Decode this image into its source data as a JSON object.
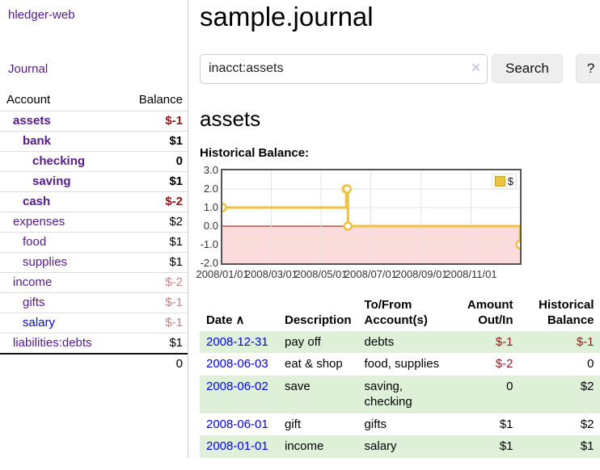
{
  "app": {
    "brand": "hledger-web"
  },
  "sidebar": {
    "journal_link": "Journal",
    "header": {
      "account": "Account",
      "balance": "Balance"
    },
    "accounts": [
      {
        "name": "assets",
        "balance": "$-1"
      },
      {
        "name": "bank",
        "balance": "$1"
      },
      {
        "name": "checking",
        "balance": "0"
      },
      {
        "name": "saving",
        "balance": "$1"
      },
      {
        "name": "cash",
        "balance": "$-2"
      },
      {
        "name": "expenses",
        "balance": "$2"
      },
      {
        "name": "food",
        "balance": "$1"
      },
      {
        "name": "supplies",
        "balance": "$1"
      },
      {
        "name": "income",
        "balance": "$-2"
      },
      {
        "name": "gifts",
        "balance": "$-1"
      },
      {
        "name": "salary",
        "balance": "$-1"
      },
      {
        "name": "liabilities:debts",
        "balance": "$1"
      }
    ],
    "total": "0"
  },
  "main": {
    "title": "sample.journal",
    "search": {
      "value": "inacct:assets",
      "clear_icon": "×",
      "search_button": "Search",
      "help_button": "?"
    },
    "heading": "assets",
    "chart_title": "Historical Balance:"
  },
  "register": {
    "headers": {
      "date": "Date",
      "description": "Description",
      "accounts": "To/From Account(s)",
      "amount": "Amount Out/In",
      "balance": "Historical Balance"
    },
    "sort_icon": "∧",
    "rows": [
      {
        "date": "2008-12-31",
        "description": "pay off",
        "accounts": "debts",
        "amount": "$-1",
        "balance": "$-1"
      },
      {
        "date": "2008-06-03",
        "description": "eat & shop",
        "accounts": "food, supplies",
        "amount": "$-2",
        "balance": "0"
      },
      {
        "date": "2008-06-02",
        "description": "save",
        "accounts": "saving, checking",
        "amount": "0",
        "balance": "$2"
      },
      {
        "date": "2008-06-01",
        "description": "gift",
        "accounts": "gifts",
        "amount": "$1",
        "balance": "$2"
      },
      {
        "date": "2008-01-01",
        "description": "income",
        "accounts": "salary",
        "amount": "$1",
        "balance": "$1"
      }
    ]
  },
  "chart_data": {
    "type": "line",
    "title": "Historical Balance:",
    "step": true,
    "series": [
      {
        "name": "$",
        "color": "#edc240",
        "points": [
          [
            "2008-01-01",
            1
          ],
          [
            "2008-06-01",
            2
          ],
          [
            "2008-06-02",
            2
          ],
          [
            "2008-06-03",
            0
          ],
          [
            "2008-12-31",
            -1
          ]
        ]
      }
    ],
    "ylim": [
      -2,
      3
    ],
    "yticks": [
      "3.0",
      "2.0",
      "1.0",
      "0.0",
      "-1.0",
      "-2.0"
    ],
    "xticks": [
      "2008/01/01",
      "2008/03/01",
      "2008/05/01",
      "2008/07/01",
      "2008/09/01",
      "2008/11/01"
    ],
    "xrange": [
      "2008-01-01",
      "2008-12-31"
    ],
    "grid": true,
    "legend_position": "top-right",
    "zero_line_color": "#a40000",
    "negative_region_color": "#fbdbdb"
  }
}
